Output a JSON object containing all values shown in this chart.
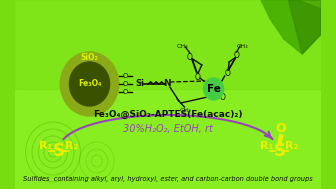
{
  "bg_color": "#77dd11",
  "title": "Fe₃O₄@SiO₂-APTES(Fe(acac)₂)",
  "reaction_condition": "30%H₂O₂, EtOH, rt",
  "bottom_text": "Sulfides  containing alkyl, aryl, hydroxyl, ester, and carbon-carbon double bond groups",
  "arrow_color": "#9944bb",
  "label_color": "#eeee00",
  "bond_color": "#111111",
  "core_color": "#3a5200",
  "shell_color": "#8aaa10",
  "fe_node_color": "#44cc44",
  "sio2_text_color": "#ddee00",
  "fe3o4_text_color": "#ddee00",
  "dark_green_leaf": "#226600",
  "light_green": "#99ee22"
}
